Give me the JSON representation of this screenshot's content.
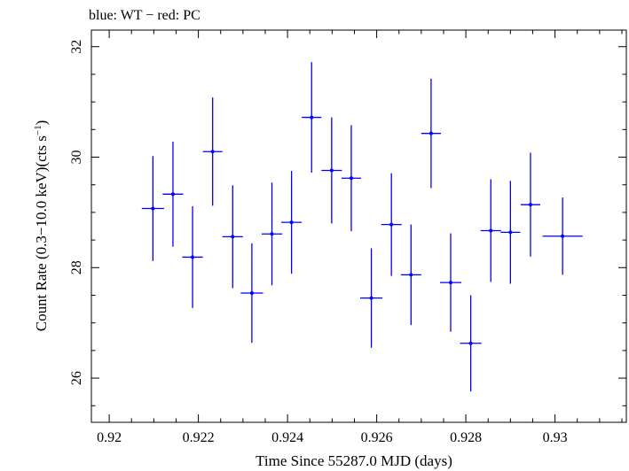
{
  "chart_data": {
    "type": "scatter",
    "title": "blue: WT − red: PC",
    "xlabel": "Time Since 55287.0 MJD (days)",
    "ylabel_main": "Count Rate (0.3−10.0 keV)(cts s",
    "ylabel_sup": "−1",
    "ylabel_close": ")",
    "xlim": [
      0.9196,
      0.9316
    ],
    "ylim": [
      25.2,
      32.3
    ],
    "x_ticks": [
      0.92,
      0.922,
      0.924,
      0.926,
      0.928,
      0.93
    ],
    "x_tick_labels": [
      "0.92",
      "0.922",
      "0.924",
      "0.926",
      "0.928",
      "0.93"
    ],
    "y_ticks": [
      26,
      28,
      30,
      32
    ],
    "y_tick_labels": [
      "26",
      "28",
      "30",
      "32"
    ],
    "x_minor_step": 0.0005,
    "y_minor_step": 0.5,
    "grid": false,
    "series": [
      {
        "color": "#0000ff",
        "points": [
          {
            "x": 0.92098,
            "y": 29.07,
            "xerr": 0.00025,
            "yerr": 0.95
          },
          {
            "x": 0.92143,
            "y": 29.33,
            "xerr": 0.00023,
            "yerr": 0.95
          },
          {
            "x": 0.92187,
            "y": 28.19,
            "xerr": 0.00023,
            "yerr": 0.92
          },
          {
            "x": 0.92232,
            "y": 30.1,
            "xerr": 0.00022,
            "yerr": 0.98
          },
          {
            "x": 0.92277,
            "y": 28.56,
            "xerr": 0.00023,
            "yerr": 0.93
          },
          {
            "x": 0.9232,
            "y": 27.54,
            "xerr": 0.00025,
            "yerr": 0.9
          },
          {
            "x": 0.92365,
            "y": 28.61,
            "xerr": 0.00023,
            "yerr": 0.93
          },
          {
            "x": 0.92409,
            "y": 28.82,
            "xerr": 0.00023,
            "yerr": 0.93
          },
          {
            "x": 0.92454,
            "y": 30.72,
            "xerr": 0.00022,
            "yerr": 1.0
          },
          {
            "x": 0.92499,
            "y": 29.76,
            "xerr": 0.00023,
            "yerr": 0.96
          },
          {
            "x": 0.92543,
            "y": 29.62,
            "xerr": 0.00022,
            "yerr": 0.96
          },
          {
            "x": 0.92588,
            "y": 27.45,
            "xerr": 0.00025,
            "yerr": 0.9
          },
          {
            "x": 0.92633,
            "y": 28.78,
            "xerr": 0.00023,
            "yerr": 0.93
          },
          {
            "x": 0.92677,
            "y": 27.87,
            "xerr": 0.00023,
            "yerr": 0.91
          },
          {
            "x": 0.92722,
            "y": 30.43,
            "xerr": 0.00022,
            "yerr": 0.99
          },
          {
            "x": 0.92766,
            "y": 27.73,
            "xerr": 0.00024,
            "yerr": 0.89
          },
          {
            "x": 0.92811,
            "y": 26.63,
            "xerr": 0.00024,
            "yerr": 0.87
          },
          {
            "x": 0.92856,
            "y": 28.67,
            "xerr": 0.00023,
            "yerr": 0.93
          },
          {
            "x": 0.929,
            "y": 28.64,
            "xerr": 0.00022,
            "yerr": 0.93
          },
          {
            "x": 0.92945,
            "y": 29.14,
            "xerr": 0.00022,
            "yerr": 0.94
          },
          {
            "x": 0.93017,
            "y": 28.57,
            "xerr": 0.00045,
            "yerr": 0.7
          }
        ]
      }
    ]
  }
}
